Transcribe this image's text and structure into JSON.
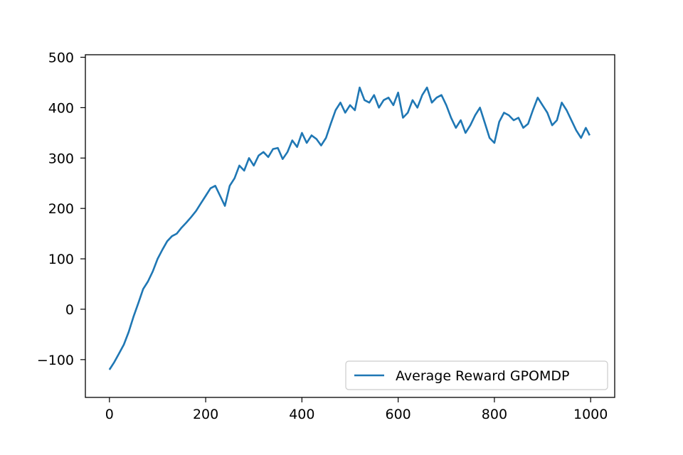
{
  "chart_data": {
    "type": "line",
    "title": "",
    "xlabel": "",
    "ylabel": "",
    "xlim": [
      -50,
      1050
    ],
    "ylim": [
      -175,
      505
    ],
    "xticks": [
      0,
      200,
      400,
      600,
      800,
      1000
    ],
    "xtick_labels": [
      "0",
      "200",
      "400",
      "600",
      "800",
      "1000"
    ],
    "yticks": [
      -100,
      0,
      100,
      200,
      300,
      400,
      500
    ],
    "ytick_labels": [
      "−100",
      "0",
      "100",
      "200",
      "300",
      "400",
      "500"
    ],
    "grid": false,
    "legend_position": "lower right",
    "series": [
      {
        "name": "Average Reward GPOMDP",
        "color": "#1f77b4",
        "x": [
          0,
          10,
          20,
          30,
          40,
          50,
          60,
          70,
          80,
          90,
          100,
          110,
          120,
          130,
          140,
          150,
          160,
          170,
          180,
          190,
          200,
          210,
          220,
          230,
          240,
          250,
          260,
          270,
          280,
          290,
          300,
          310,
          320,
          330,
          340,
          350,
          360,
          370,
          380,
          390,
          400,
          410,
          420,
          430,
          440,
          450,
          460,
          470,
          480,
          490,
          500,
          510,
          520,
          530,
          540,
          550,
          560,
          570,
          580,
          590,
          600,
          610,
          620,
          630,
          640,
          650,
          660,
          670,
          680,
          690,
          700,
          710,
          720,
          730,
          740,
          750,
          760,
          770,
          780,
          790,
          800,
          810,
          820,
          830,
          840,
          850,
          860,
          870,
          880,
          890,
          900,
          910,
          920,
          930,
          940,
          950,
          960,
          970,
          980,
          990,
          998
        ],
        "y": [
          -120,
          -105,
          -88,
          -70,
          -45,
          -15,
          12,
          40,
          55,
          75,
          100,
          118,
          135,
          145,
          150,
          162,
          172,
          183,
          195,
          210,
          225,
          240,
          245,
          225,
          205,
          245,
          260,
          285,
          275,
          300,
          285,
          305,
          312,
          302,
          318,
          320,
          298,
          312,
          335,
          322,
          350,
          330,
          345,
          338,
          325,
          340,
          368,
          395,
          410,
          390,
          405,
          395,
          440,
          415,
          410,
          425,
          400,
          415,
          420,
          405,
          430,
          380,
          390,
          415,
          400,
          425,
          440,
          410,
          420,
          425,
          405,
          380,
          360,
          375,
          350,
          365,
          385,
          400,
          370,
          340,
          330,
          372,
          390,
          385,
          375,
          380,
          360,
          368,
          395,
          420,
          405,
          390,
          365,
          375,
          410,
          395,
          375,
          355,
          340,
          360,
          345
        ]
      }
    ]
  }
}
